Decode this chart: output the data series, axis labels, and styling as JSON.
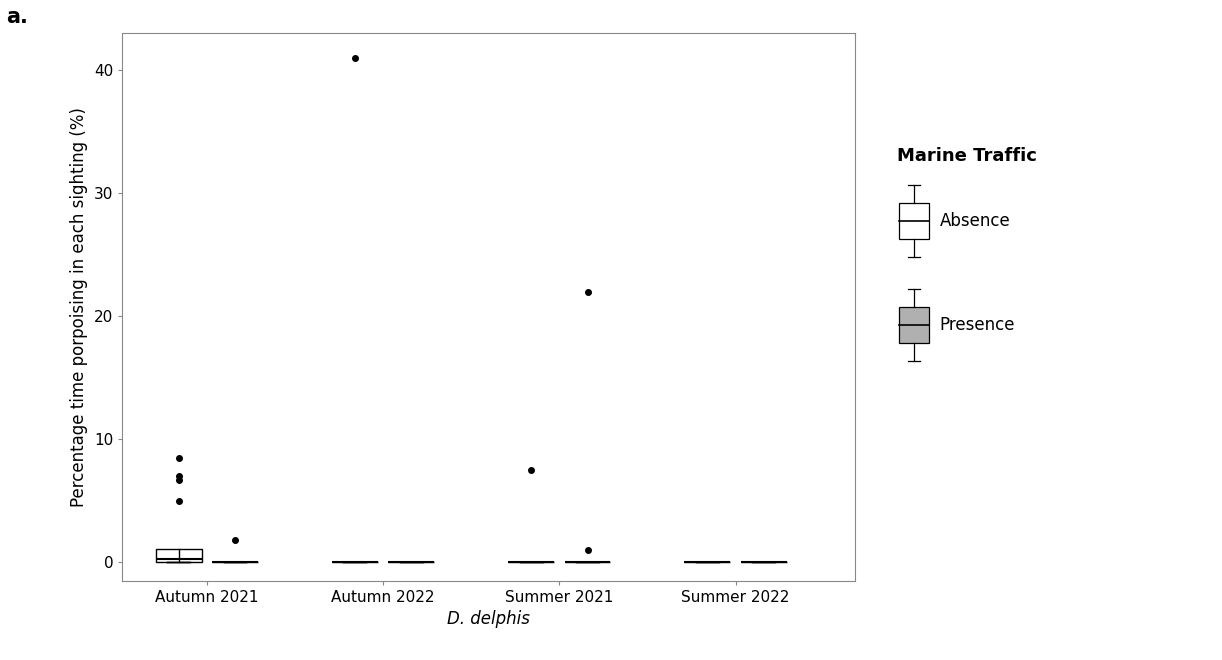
{
  "title_label": "a.",
  "xlabel": "D. delphis",
  "ylabel": "Percentage time porpoising in each sighting (%)",
  "ylim": [
    -1.5,
    43
  ],
  "yticks": [
    0,
    10,
    20,
    30,
    40
  ],
  "categories": [
    "Autumn 2021",
    "Autumn 2022",
    "Summer 2021",
    "Summer 2022"
  ],
  "absence_color": "#ffffff",
  "presence_color": "#b0b0b0",
  "box_edge_color": "#000000",
  "absence_data": {
    "Autumn 2021": {
      "q1": 0.0,
      "median": 0.3,
      "q3": 1.1,
      "whislo": 0.0,
      "whishi": 0.0,
      "fliers": [
        5.0,
        6.7,
        7.0,
        8.5
      ]
    },
    "Autumn 2022": {
      "q1": 0.0,
      "median": 0.0,
      "q3": 0.0,
      "whislo": 0.0,
      "whishi": 0.0,
      "fliers": [
        41.0
      ]
    },
    "Summer 2021": {
      "q1": 0.0,
      "median": 0.0,
      "q3": 0.0,
      "whislo": 0.0,
      "whishi": 0.0,
      "fliers": [
        7.5
      ]
    },
    "Summer 2022": {
      "q1": 0.0,
      "median": 0.0,
      "q3": 0.0,
      "whislo": 0.0,
      "whishi": 0.0,
      "fliers": []
    }
  },
  "presence_data": {
    "Autumn 2021": {
      "q1": 0.0,
      "median": 0.0,
      "q3": 0.0,
      "whislo": 0.0,
      "whishi": 0.0,
      "fliers": [
        1.8
      ]
    },
    "Autumn 2022": {
      "q1": 0.0,
      "median": 0.0,
      "q3": 0.0,
      "whislo": 0.0,
      "whishi": 0.0,
      "fliers": []
    },
    "Summer 2021": {
      "q1": 0.0,
      "median": 0.0,
      "q3": 0.0,
      "whislo": 0.0,
      "whishi": 0.0,
      "fliers": [
        1.0,
        22.0
      ]
    },
    "Summer 2022": {
      "q1": 0.0,
      "median": 0.0,
      "q3": 0.0,
      "whislo": 0.0,
      "whishi": 0.0,
      "fliers": []
    }
  },
  "box_width": 0.65,
  "background_color": "#ffffff",
  "legend_title": "Marine Traffic",
  "legend_absence": "Absence",
  "legend_presence": "Presence",
  "title_fontsize": 15,
  "label_fontsize": 12,
  "tick_fontsize": 11,
  "legend_fontsize": 12,
  "legend_title_fontsize": 13
}
